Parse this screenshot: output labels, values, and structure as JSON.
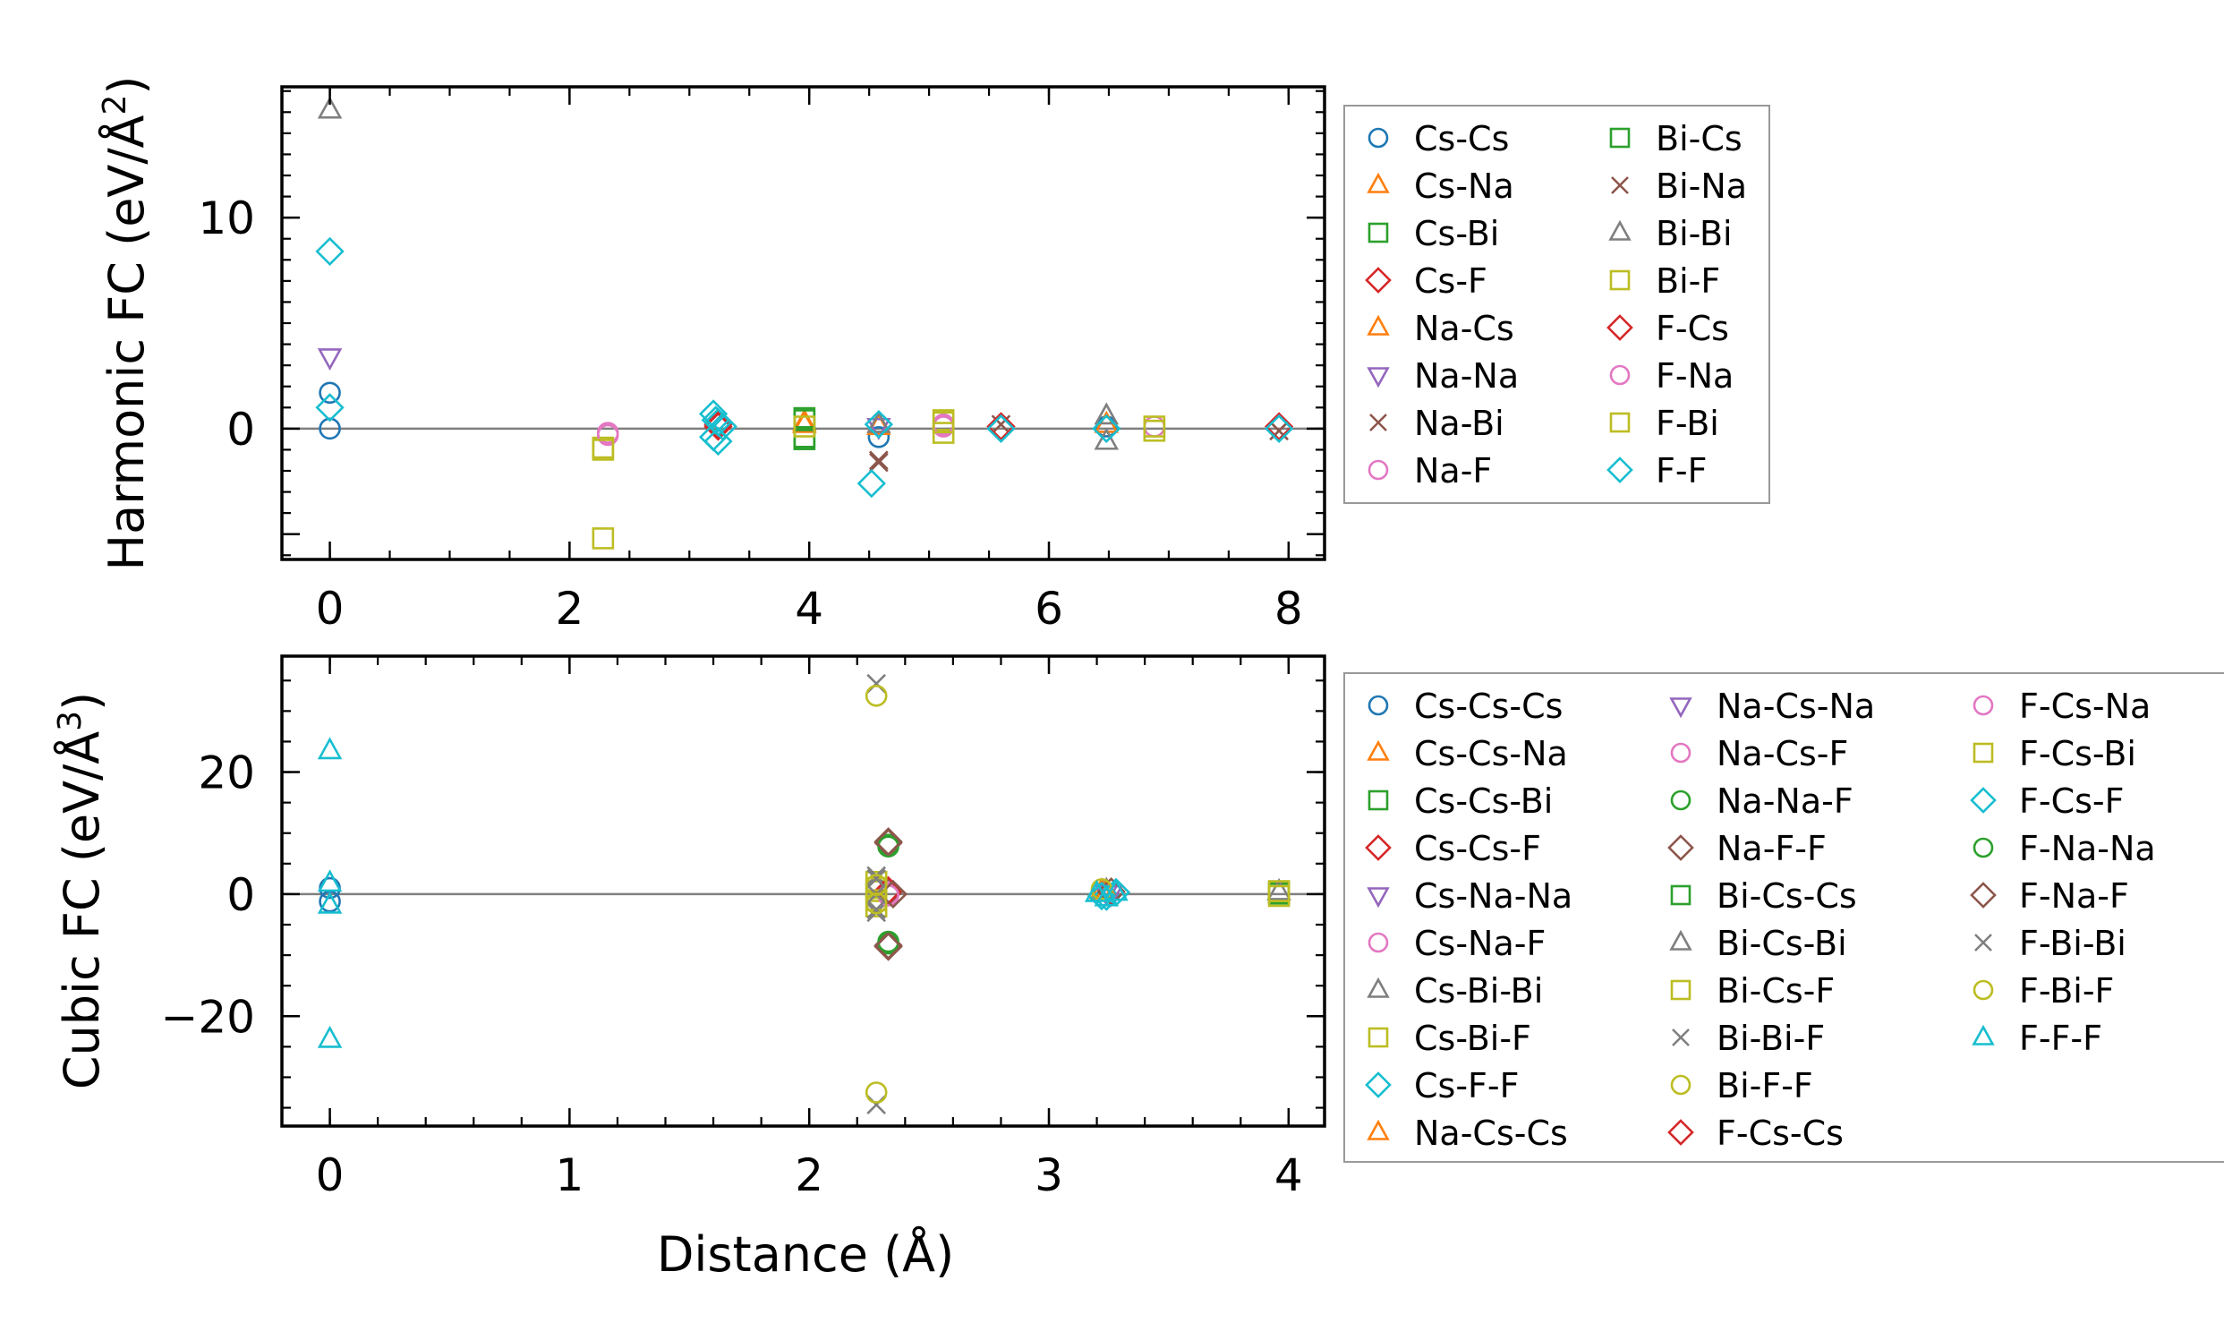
{
  "figure": {
    "xlabel": "Distance (Å)"
  },
  "chart_data": [
    {
      "type": "scatter",
      "ylabel_main": "Harmonic FC (eV/Å",
      "ylabel_sup": "2",
      "ylabel_close": ")",
      "xlim": [
        -0.4,
        8.3
      ],
      "ylim": [
        -6.2,
        16.2
      ],
      "xticks": [
        0,
        2,
        4,
        6,
        8
      ],
      "yticks": [
        -5,
        0,
        10
      ],
      "ytick_labels": [
        "",
        "0",
        "10"
      ],
      "minor_x_step": 0.5,
      "minor_y_step": 1,
      "hline": 0,
      "legend_rows": 8,
      "series": [
        {
          "name": "Cs-Cs",
          "marker": "circle",
          "color": "#1f77b4",
          "points": [
            [
              0,
              1.7
            ],
            [
              0,
              0
            ],
            [
              4.58,
              -0.4
            ],
            [
              6.48,
              0.1
            ]
          ]
        },
        {
          "name": "Cs-Na",
          "marker": "triangle-up",
          "color": "#ff7f0e",
          "points": [
            [
              3.96,
              0.3
            ],
            [
              4.58,
              0.1
            ]
          ]
        },
        {
          "name": "Cs-Bi",
          "marker": "square",
          "color": "#2ca02c",
          "points": [
            [
              3.96,
              0.5
            ],
            [
              3.96,
              -0.5
            ]
          ]
        },
        {
          "name": "Cs-F",
          "marker": "diamond",
          "color": "#d62728",
          "points": [
            [
              3.24,
              0.1
            ],
            [
              5.6,
              0.1
            ],
            [
              7.92,
              0.1
            ]
          ]
        },
        {
          "name": "Na-Cs",
          "marker": "triangle-up",
          "color": "#ff7f0e",
          "points": [
            [
              3.96,
              0.2
            ],
            [
              6.48,
              0.2
            ]
          ]
        },
        {
          "name": "Na-Na",
          "marker": "triangle-down",
          "color": "#9467bd",
          "points": [
            [
              0,
              3.4
            ],
            [
              4.58,
              0.1
            ]
          ]
        },
        {
          "name": "Na-Bi",
          "marker": "x",
          "color": "#8c564b",
          "points": [
            [
              4.58,
              -1.6
            ],
            [
              5.6,
              0.2
            ],
            [
              7.92,
              -0.1
            ]
          ]
        },
        {
          "name": "Na-F",
          "marker": "circle",
          "color": "#e377c2",
          "points": [
            [
              2.32,
              -0.2
            ],
            [
              5.12,
              0.1
            ],
            [
              6.88,
              0.1
            ]
          ]
        },
        {
          "name": "Bi-Cs",
          "marker": "square",
          "color": "#2ca02c",
          "points": [
            [
              3.96,
              0.4
            ],
            [
              3.96,
              -0.4
            ]
          ]
        },
        {
          "name": "Bi-Na",
          "marker": "x",
          "color": "#8c564b",
          "points": [
            [
              4.58,
              -1.5
            ],
            [
              7.92,
              -0.1
            ]
          ]
        },
        {
          "name": "Bi-Bi",
          "marker": "triangle-up",
          "color": "#7f7f7f",
          "points": [
            [
              0,
              15.1
            ],
            [
              6.48,
              0.6
            ],
            [
              6.48,
              -0.6
            ],
            [
              4.58,
              0.2
            ]
          ]
        },
        {
          "name": "Bi-F",
          "marker": "square",
          "color": "#bcbd22",
          "points": [
            [
              2.28,
              -0.9
            ],
            [
              2.28,
              -5.2
            ],
            [
              5.12,
              0.4
            ],
            [
              5.12,
              -0.2
            ],
            [
              6.88,
              0.1
            ],
            [
              6.88,
              -0.1
            ],
            [
              3.96,
              0.1
            ]
          ]
        },
        {
          "name": "F-Cs",
          "marker": "diamond",
          "color": "#d62728",
          "points": [
            [
              3.24,
              0.2
            ],
            [
              5.6,
              0.1
            ]
          ]
        },
        {
          "name": "F-Na",
          "marker": "circle",
          "color": "#e377c2",
          "points": [
            [
              2.32,
              -0.3
            ],
            [
              5.12,
              0.2
            ]
          ]
        },
        {
          "name": "F-Bi",
          "marker": "square",
          "color": "#bcbd22",
          "points": [
            [
              2.28,
              -1.0
            ],
            [
              5.12,
              0.3
            ]
          ]
        },
        {
          "name": "F-F",
          "marker": "diamond",
          "color": "#17becf",
          "points": [
            [
              0,
              8.4
            ],
            [
              0,
              1.0
            ],
            [
              3.2,
              0.7
            ],
            [
              3.24,
              0.3
            ],
            [
              3.2,
              -0.4
            ],
            [
              3.24,
              -0.6
            ],
            [
              3.28,
              0.1
            ],
            [
              3.22,
              0.4
            ],
            [
              4.52,
              -2.6
            ],
            [
              4.58,
              0.2
            ],
            [
              5.6,
              0.0
            ],
            [
              6.48,
              0.0
            ],
            [
              7.92,
              0.0
            ]
          ]
        }
      ]
    },
    {
      "type": "scatter",
      "ylabel_main": "Cubic FC (eV/Å",
      "ylabel_sup": "3",
      "ylabel_close": ")",
      "xlim": [
        -0.2,
        4.15
      ],
      "ylim": [
        -38,
        39
      ],
      "xticks": [
        0,
        1,
        2,
        3,
        4
      ],
      "yticks": [
        -20,
        0,
        20
      ],
      "ytick_labels": [
        "−20",
        "0",
        "20"
      ],
      "minor_x_step": 0.2,
      "minor_y_step": 5,
      "hline": 0,
      "legend_rows": 10,
      "series": [
        {
          "name": "Cs-Cs-Cs",
          "marker": "circle",
          "color": "#1f77b4",
          "points": [
            [
              0,
              1.0
            ],
            [
              0,
              -1.2
            ]
          ]
        },
        {
          "name": "Cs-Cs-Na",
          "marker": "triangle-up",
          "color": "#ff7f0e",
          "points": [
            [
              3.22,
              0.5
            ]
          ]
        },
        {
          "name": "Cs-Cs-Bi",
          "marker": "square",
          "color": "#2ca02c",
          "points": [
            [
              3.96,
              0.3
            ]
          ]
        },
        {
          "name": "Cs-Cs-F",
          "marker": "diamond",
          "color": "#d62728",
          "points": [
            [
              2.33,
              0.3
            ]
          ]
        },
        {
          "name": "Cs-Na-Na",
          "marker": "triangle-down",
          "color": "#9467bd",
          "points": [
            [
              3.24,
              0.2
            ]
          ]
        },
        {
          "name": "Cs-Na-F",
          "marker": "circle",
          "color": "#e377c2",
          "points": [
            [
              2.33,
              0.2
            ]
          ]
        },
        {
          "name": "Cs-Bi-Bi",
          "marker": "triangle-up",
          "color": "#7f7f7f",
          "points": [
            [
              3.24,
              0.6
            ]
          ]
        },
        {
          "name": "Cs-Bi-F",
          "marker": "square",
          "color": "#bcbd22",
          "points": [
            [
              2.28,
              0.5
            ],
            [
              3.96,
              0.2
            ]
          ]
        },
        {
          "name": "Cs-F-F",
          "marker": "diamond",
          "color": "#17becf",
          "points": [
            [
              3.24,
              -0.4
            ]
          ]
        },
        {
          "name": "Na-Cs-Cs",
          "marker": "triangle-up",
          "color": "#ff7f0e",
          "points": [
            [
              3.24,
              0.3
            ]
          ]
        },
        {
          "name": "Na-Cs-Na",
          "marker": "triangle-down",
          "color": "#9467bd",
          "points": [
            [
              3.26,
              0.1
            ]
          ]
        },
        {
          "name": "Na-Cs-F",
          "marker": "circle",
          "color": "#e377c2",
          "points": [
            [
              2.33,
              0.4
            ]
          ]
        },
        {
          "name": "Na-Na-F",
          "marker": "circle",
          "color": "#2ca02c",
          "points": [
            [
              2.33,
              8.1
            ],
            [
              2.33,
              -8.1
            ]
          ]
        },
        {
          "name": "Na-F-F",
          "marker": "diamond",
          "color": "#8c564b",
          "points": [
            [
              2.33,
              8.4
            ],
            [
              2.33,
              -8.4
            ],
            [
              2.33,
              0.4
            ],
            [
              3.26,
              0.4
            ]
          ]
        },
        {
          "name": "Bi-Cs-Cs",
          "marker": "square",
          "color": "#2ca02c",
          "points": [
            [
              3.96,
              0.1
            ]
          ]
        },
        {
          "name": "Bi-Cs-Bi",
          "marker": "triangle-up",
          "color": "#7f7f7f",
          "points": [
            [
              3.96,
              0.4
            ]
          ]
        },
        {
          "name": "Bi-Cs-F",
          "marker": "square",
          "color": "#bcbd22",
          "points": [
            [
              2.28,
              2.0
            ],
            [
              2.28,
              -2.0
            ],
            [
              3.96,
              0.5
            ]
          ]
        },
        {
          "name": "Bi-Bi-F",
          "marker": "x",
          "color": "#7f7f7f",
          "points": [
            [
              2.28,
              34.5
            ],
            [
              2.28,
              -34.5
            ],
            [
              2.28,
              3.0
            ],
            [
              2.28,
              -3.0
            ]
          ]
        },
        {
          "name": "Bi-F-F",
          "marker": "circle",
          "color": "#bcbd22",
          "points": [
            [
              2.28,
              32.5
            ],
            [
              2.28,
              -32.5
            ]
          ]
        },
        {
          "name": "F-Cs-Cs",
          "marker": "diamond",
          "color": "#d62728",
          "points": [
            [
              2.33,
              0.6
            ]
          ]
        },
        {
          "name": "F-Cs-Na",
          "marker": "circle",
          "color": "#e377c2",
          "points": [
            [
              2.33,
              -0.2
            ]
          ]
        },
        {
          "name": "F-Cs-Bi",
          "marker": "square",
          "color": "#bcbd22",
          "points": [
            [
              2.28,
              1.0
            ],
            [
              2.28,
              -1.0
            ],
            [
              3.96,
              -0.3
            ]
          ]
        },
        {
          "name": "F-Cs-F",
          "marker": "diamond",
          "color": "#17becf",
          "points": [
            [
              3.22,
              -0.3
            ],
            [
              3.28,
              0.3
            ]
          ]
        },
        {
          "name": "F-Na-Na",
          "marker": "circle",
          "color": "#2ca02c",
          "points": [
            [
              2.33,
              7.8
            ],
            [
              2.33,
              -7.8
            ]
          ]
        },
        {
          "name": "F-Na-F",
          "marker": "diamond",
          "color": "#8c564b",
          "points": [
            [
              2.33,
              8.6
            ],
            [
              2.33,
              -8.6
            ],
            [
              2.35,
              0.0
            ]
          ]
        },
        {
          "name": "F-Bi-Bi",
          "marker": "x",
          "color": "#7f7f7f",
          "points": [
            [
              2.28,
              2.5
            ],
            [
              2.28,
              -2.5
            ],
            [
              2.28,
              0.0
            ]
          ]
        },
        {
          "name": "F-Bi-F",
          "marker": "circle",
          "color": "#bcbd22",
          "points": [
            [
              2.28,
              1.5
            ],
            [
              2.28,
              -1.5
            ],
            [
              3.22,
              0.8
            ]
          ]
        },
        {
          "name": "F-F-F",
          "marker": "triangle-up",
          "color": "#17becf",
          "points": [
            [
              0,
              23.5
            ],
            [
              0,
              -23.8
            ],
            [
              0,
              1.8
            ],
            [
              0,
              -1.8
            ],
            [
              3.2,
              0.1
            ],
            [
              3.24,
              -0.6
            ],
            [
              3.28,
              0.3
            ]
          ]
        }
      ]
    }
  ]
}
